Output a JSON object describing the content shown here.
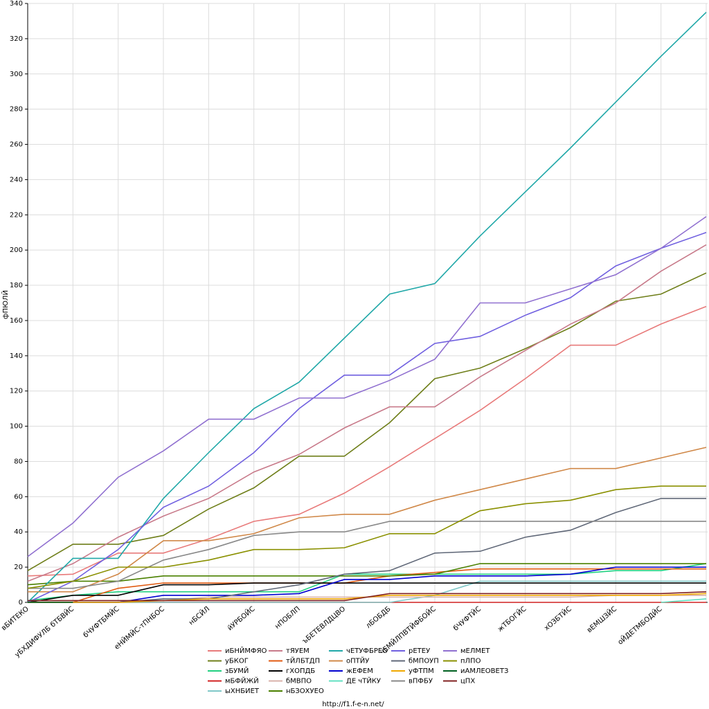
{
  "chart_data": {
    "type": "line",
    "y_label": "фПЮЛЙ",
    "footer": "http://f1.f-e-n.net/",
    "categories": [
      "вБИТЕКО",
      "уБХДИФУЛБ бТБВЙС",
      "бЧУФТБМЙС",
      "еНЙМЙС-тПНБОС",
      "нБСЙЛ",
      "йУРБОЙС",
      "нПОБЛП",
      "ъБЕТЕВЛДЦВО",
      "лБОБДБ",
      "чЕМЙЛПВТЙФБОЙС",
      "бЧУФТЙС",
      "жТБОГЙС",
      "хОЗБТЙС",
      "вЕМШЗЙС",
      "оЙДЕТМБОДЙС",
      null
    ],
    "ylim": [
      0,
      340
    ],
    "yticks": [
      0,
      20,
      40,
      60,
      80,
      100,
      120,
      140,
      160,
      180,
      200,
      220,
      240,
      260,
      280,
      300,
      320,
      340
    ],
    "grid": true,
    "series": [
      {
        "name": "иБНЙМФЯО",
        "color": "#e87a7a",
        "values": [
          15,
          16,
          28,
          28,
          36,
          46,
          50,
          62,
          77,
          93,
          109,
          127,
          146,
          146,
          158,
          168
        ]
      },
      {
        "name": "уБКОГ",
        "color": "#6f7f1a",
        "values": [
          18,
          33,
          33,
          38,
          53,
          65,
          83,
          83,
          102,
          127,
          133,
          144,
          156,
          171,
          175,
          187
        ]
      },
      {
        "name": "зБУМЙ",
        "color": "#20d080",
        "values": [
          1,
          4,
          6,
          6,
          6,
          6,
          6,
          16,
          16,
          16,
          16,
          16,
          16,
          18,
          18,
          22
        ]
      },
      {
        "name": "мБФЙЖЙ",
        "color": "#d02020",
        "values": [
          0,
          0,
          0,
          0,
          0,
          0,
          0,
          0,
          0,
          0,
          0,
          0,
          0,
          0,
          0,
          0
        ]
      },
      {
        "name": "ыХНБИЕТ",
        "color": "#80c8c8",
        "values": [
          0,
          0,
          0,
          0,
          0,
          0,
          0,
          0,
          0,
          4,
          12,
          12,
          12,
          12,
          12,
          12
        ]
      },
      {
        "name": "тЯУЕМ",
        "color": "#c87a8a",
        "values": [
          12,
          22,
          37,
          49,
          59,
          74,
          84,
          99,
          111,
          111,
          128,
          143,
          158,
          170,
          188,
          203
        ]
      },
      {
        "name": "тЙЛБТДП",
        "color": "#e05a10",
        "values": [
          0,
          0,
          8,
          11,
          11,
          11,
          11,
          11,
          15,
          17,
          19,
          19,
          19,
          19,
          19,
          19
        ]
      },
      {
        "name": "гХОПДБ",
        "color": "#000000",
        "values": [
          0,
          4,
          4,
          10,
          10,
          11,
          11,
          11,
          11,
          11,
          11,
          11,
          11,
          11,
          11,
          11
        ]
      },
      {
        "name": "бМВПО",
        "color": "#d8b0a8",
        "values": [
          1,
          1,
          1,
          1,
          3,
          3,
          3,
          3,
          3,
          3,
          3,
          3,
          3,
          4,
          4,
          4
        ]
      },
      {
        "name": "нБЗОХУЕО",
        "color": "#4a8000",
        "values": [
          10,
          12,
          12,
          15,
          15,
          15,
          15,
          15,
          15,
          16,
          22,
          22,
          22,
          22,
          22,
          22
        ]
      },
      {
        "name": "чЕТУФБРЕО",
        "color": "#20a8a8",
        "values": [
          0,
          25,
          25,
          59,
          85,
          110,
          125,
          150,
          175,
          181,
          208,
          233,
          258,
          284,
          310,
          335
        ]
      },
      {
        "name": "оПТЙУ",
        "color": "#d08848",
        "values": [
          6,
          6,
          16,
          35,
          35,
          39,
          48,
          50,
          50,
          58,
          64,
          70,
          76,
          76,
          82,
          88
        ]
      },
      {
        "name": "жЕФЕМ",
        "color": "#0000d0",
        "values": [
          0,
          0,
          0,
          4,
          4,
          4,
          5,
          13,
          13,
          15,
          15,
          15,
          16,
          20,
          20,
          20
        ]
      },
      {
        "name": "ДЕ чТЙКУ",
        "color": "#60e0c0",
        "values": [
          null,
          null,
          null,
          null,
          null,
          null,
          null,
          null,
          null,
          null,
          null,
          null,
          null,
          null,
          0,
          2
        ]
      },
      {
        "name": "рЕТЕУ",
        "color": "#7060e0",
        "values": [
          0,
          12,
          30,
          54,
          66,
          85,
          110,
          129,
          129,
          147,
          151,
          163,
          173,
          191,
          201,
          210
        ]
      },
      {
        "name": "бМПОУП",
        "color": "#606878",
        "values": [
          0,
          0,
          0,
          2,
          2,
          6,
          10,
          16,
          18,
          28,
          29,
          37,
          41,
          51,
          59,
          59
        ]
      },
      {
        "name": "уФТПМ",
        "color": "#f0a800",
        "values": [
          0,
          0,
          0,
          1,
          2,
          2,
          2,
          2,
          4,
          4,
          4,
          4,
          4,
          4,
          4,
          5
        ]
      },
      {
        "name": "вПФБУ",
        "color": "#888888",
        "values": [
          8,
          8,
          12,
          24,
          30,
          38,
          40,
          40,
          46,
          46,
          46,
          46,
          46,
          46,
          46,
          46
        ]
      },
      {
        "name": "мЕЛМЕТ",
        "color": "#9070d0",
        "values": [
          26,
          45,
          71,
          86,
          104,
          104,
          116,
          116,
          126,
          138,
          170,
          170,
          178,
          186,
          201,
          219
        ]
      },
      {
        "name": "пЛПО",
        "color": "#8a9000",
        "values": [
          8,
          12,
          20,
          20,
          24,
          30,
          30,
          31,
          39,
          39,
          52,
          56,
          58,
          64,
          66,
          66
        ]
      },
      {
        "name": "иАМЛЕОВЕТЗ",
        "color": "#006020",
        "values": [
          0,
          0,
          null,
          null,
          null,
          null,
          null,
          null,
          null,
          null,
          null,
          null,
          null,
          null,
          null,
          null
        ]
      },
      {
        "name": "цПХ",
        "color": "#802020",
        "values": [
          1,
          1,
          1,
          1,
          1,
          1,
          1,
          1,
          5,
          5,
          5,
          5,
          5,
          5,
          5,
          6
        ]
      }
    ]
  }
}
